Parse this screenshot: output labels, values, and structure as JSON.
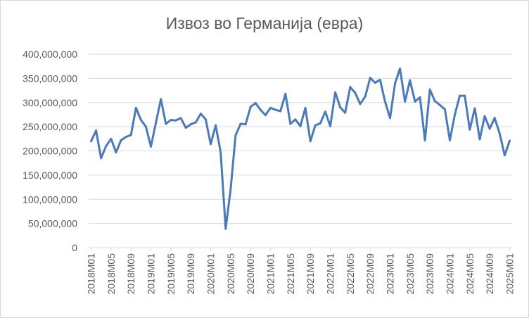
{
  "chart_data": {
    "type": "line",
    "title": "Извоз во Германија (евра)",
    "xlabel": "",
    "ylabel": "",
    "ylim": [
      0,
      400000000
    ],
    "y_ticks": [
      "0",
      "50,000,000",
      "100,000,000",
      "150,000,000",
      "200,000,000",
      "250,000,000",
      "300,000,000",
      "350,000,000",
      "400,000,000"
    ],
    "x_tick_labels": [
      "2018M01",
      "2018M05",
      "2018M09",
      "2019M01",
      "2019M05",
      "2019M09",
      "2020M01",
      "2020M05",
      "2020M09",
      "2021M01",
      "2021M05",
      "2021M09",
      "2022M01",
      "2022M05",
      "2022M09",
      "2023M01",
      "2023M05",
      "2023M09",
      "2024M01",
      "2024M05",
      "2024M09",
      "2025M01"
    ],
    "grid": true,
    "legend": "none",
    "line_color": "#4a7ab8",
    "x": [
      "2018M01",
      "2018M02",
      "2018M03",
      "2018M04",
      "2018M05",
      "2018M06",
      "2018M07",
      "2018M08",
      "2018M09",
      "2018M10",
      "2018M11",
      "2018M12",
      "2019M01",
      "2019M02",
      "2019M03",
      "2019M04",
      "2019M05",
      "2019M06",
      "2019M07",
      "2019M08",
      "2019M09",
      "2019M10",
      "2019M11",
      "2019M12",
      "2020M01",
      "2020M02",
      "2020M03",
      "2020M04",
      "2020M05",
      "2020M06",
      "2020M07",
      "2020M08",
      "2020M09",
      "2020M10",
      "2020M11",
      "2020M12",
      "2021M01",
      "2021M02",
      "2021M03",
      "2021M04",
      "2021M05",
      "2021M06",
      "2021M07",
      "2021M08",
      "2021M09",
      "2021M10",
      "2021M11",
      "2021M12",
      "2022M01",
      "2022M02",
      "2022M03",
      "2022M04",
      "2022M05",
      "2022M06",
      "2022M07",
      "2022M08",
      "2022M09",
      "2022M10",
      "2022M11",
      "2022M12",
      "2023M01",
      "2023M02",
      "2023M03",
      "2023M04",
      "2023M05",
      "2023M06",
      "2023M07",
      "2023M08",
      "2023M09",
      "2023M10",
      "2023M11",
      "2023M12",
      "2024M01",
      "2024M02",
      "2024M03",
      "2024M04",
      "2024M05",
      "2024M06",
      "2024M07",
      "2024M08",
      "2024M09",
      "2024M10",
      "2024M11",
      "2024M12",
      "2025M01"
    ],
    "values": [
      220000000,
      242000000,
      185000000,
      210000000,
      225000000,
      197000000,
      222000000,
      229000000,
      233000000,
      289000000,
      264000000,
      250000000,
      209000000,
      258000000,
      307000000,
      256000000,
      264000000,
      263000000,
      268000000,
      248000000,
      255000000,
      259000000,
      277000000,
      265000000,
      214000000,
      253000000,
      197000000,
      39000000,
      120000000,
      232000000,
      256000000,
      255000000,
      291000000,
      299000000,
      285000000,
      274000000,
      289000000,
      285000000,
      282000000,
      318000000,
      256000000,
      265000000,
      251000000,
      289000000,
      220000000,
      253000000,
      257000000,
      281000000,
      251000000,
      321000000,
      290000000,
      279000000,
      332000000,
      320000000,
      297000000,
      312000000,
      351000000,
      341000000,
      347000000,
      302000000,
      268000000,
      340000000,
      370000000,
      302000000,
      346000000,
      302000000,
      311000000,
      222000000,
      327000000,
      303000000,
      295000000,
      286000000,
      222000000,
      275000000,
      314000000,
      314000000,
      244000000,
      288000000,
      224000000,
      272000000,
      246000000,
      268000000,
      236000000,
      191000000,
      221000000
    ]
  }
}
